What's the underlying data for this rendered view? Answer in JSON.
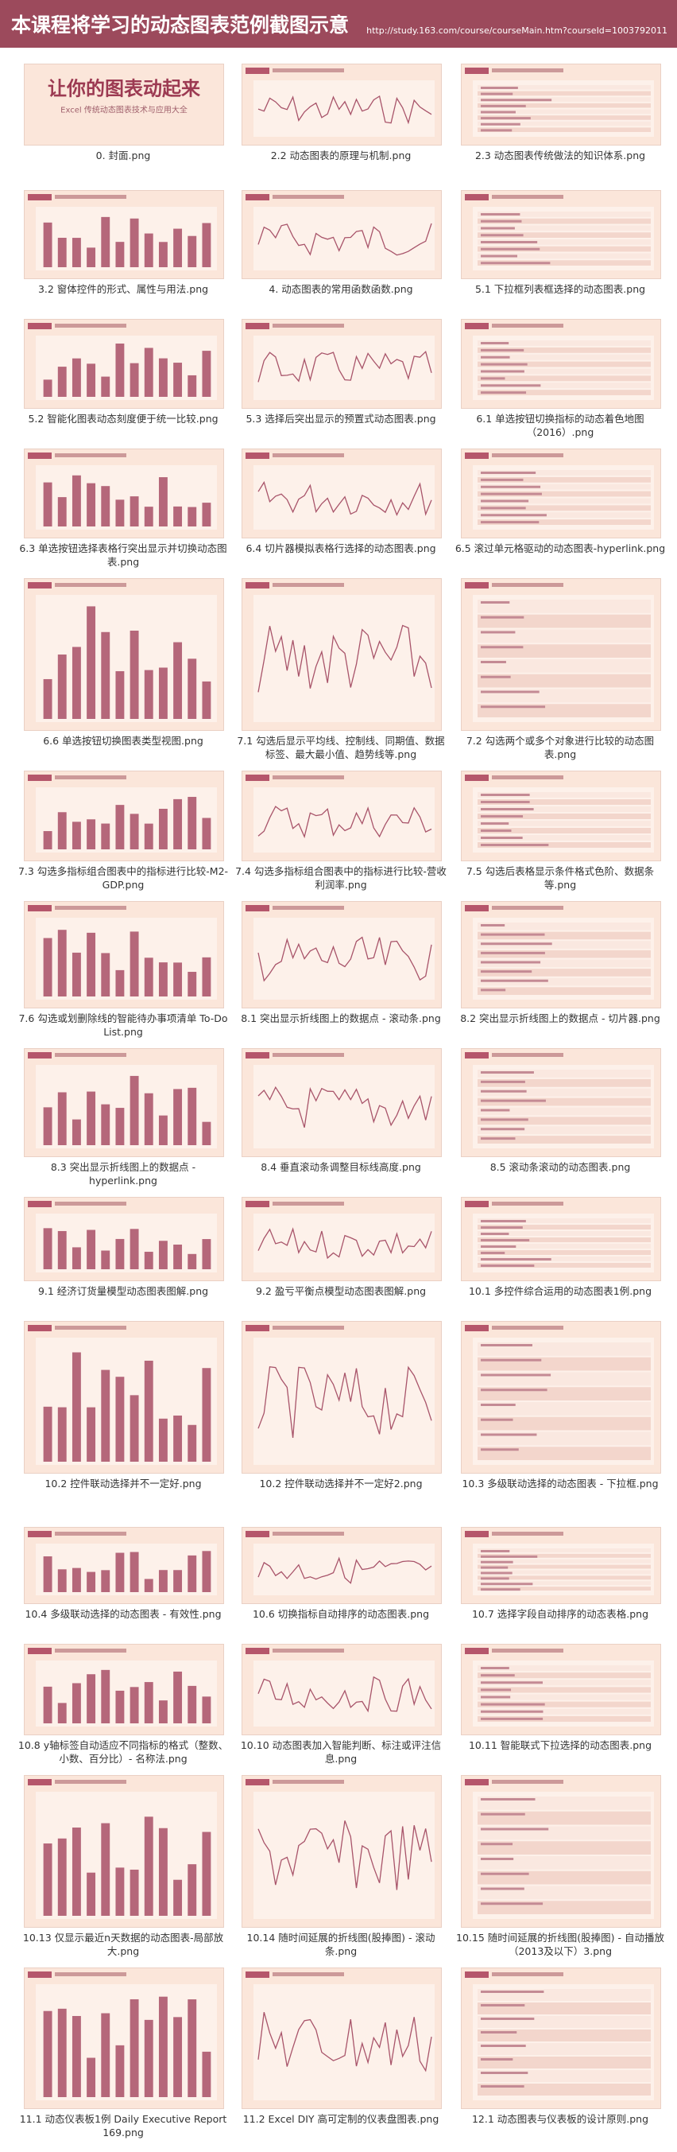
{
  "header": {
    "title": "本课程将学习的动态图表范例截图示意",
    "url": "http://study.163.com/course/courseMain.htm?courseId=1003792011"
  },
  "cover": {
    "title": "让你的图表动起来",
    "subtitle": "Excel 传统动态图表技术与应用大全"
  },
  "gallery": [
    "0. 封面.png",
    "2.2 动态图表的原理与机制.png",
    "2.3 动态图表传统做法的知识体系.png",
    "3.2 窗体控件的形式、属性与用法.png",
    "4. 动态图表的常用函数函数.png",
    "5.1 下拉框列表框选择的动态图表.png",
    "5.2 智能化图表动态刻度便于统一比较.png",
    "5.3 选择后突出显示的预置式动态图表.png",
    "6.1 单选按钮切换指标的动态着色地图（2016）.png",
    "6.3 单选按钮选择表格行突出显示并切换动态图表.png",
    "6.4 切片器模拟表格行选择的动态图表.png",
    "6.5 滚过单元格驱动的动态图表-hyperlink.png",
    "6.6 单选按钮切换图表类型视图.png",
    "7.1 勾选后显示平均线、控制线、同期值、数据标签、最大最小值、趋势线等.png",
    "7.2 勾选两个或多个对象进行比较的动态图表.png",
    "7.3 勾选多指标组合图表中的指标进行比较-M2-GDP.png",
    "7.4 勾选多指标组合图表中的指标进行比较-营收利润率.png",
    "7.5 勾选后表格显示条件格式色阶、数据条等.png",
    "7.6 勾选或划删除线的智能待办事项清单 To-Do List.png",
    "8.1 突出显示折线图上的数据点 - 滚动条.png",
    "8.2 突出显示折线图上的数据点 - 切片器.png",
    "8.3 突出显示折线图上的数据点 - hyperlink.png",
    "8.4 垂直滚动条调整目标线高度.png",
    "8.5 滚动条滚动的动态图表.png",
    "9.1 经济订货量模型动态图表图解.png",
    "9.2 盈亏平衡点模型动态图表图解.png",
    "10.1 多控件综合运用的动态图表1例.png",
    "10.2 控件联动选择并不一定好.png",
    "10.2 控件联动选择并不一定好2.png",
    "10.3 多级联动选择的动态图表 - 下拉框.png",
    "10.4 多级联动选择的动态图表 - 有效性.png",
    "10.6 切换指标自动排序的动态图表.png",
    "10.7 选择字段自动排序的动态表格.png",
    "10.8 y轴标签自动适应不同指标的格式（整数、小数、百分比）- 名称法.png",
    "10.10 动态图表加入智能判断、标注或评注信息.png",
    "10.11 智能联式下拉选择的动态图表.png",
    "10.13 仅显示最近n天数据的动态图表-局部放大.png",
    "10.14 随时间延展的折线图(股捧图) - 滚动条.png",
    "10.15 随时间延展的折线图(股捧图) - 自动播放（2013及以下）3.png",
    "11.1 动态仪表板1例 Daily Executive Report 169.png",
    "11.2 Excel DIY 高可定制的仪表盘图表.png",
    "12.1 动态图表与仪表板的设计原则.png"
  ]
}
